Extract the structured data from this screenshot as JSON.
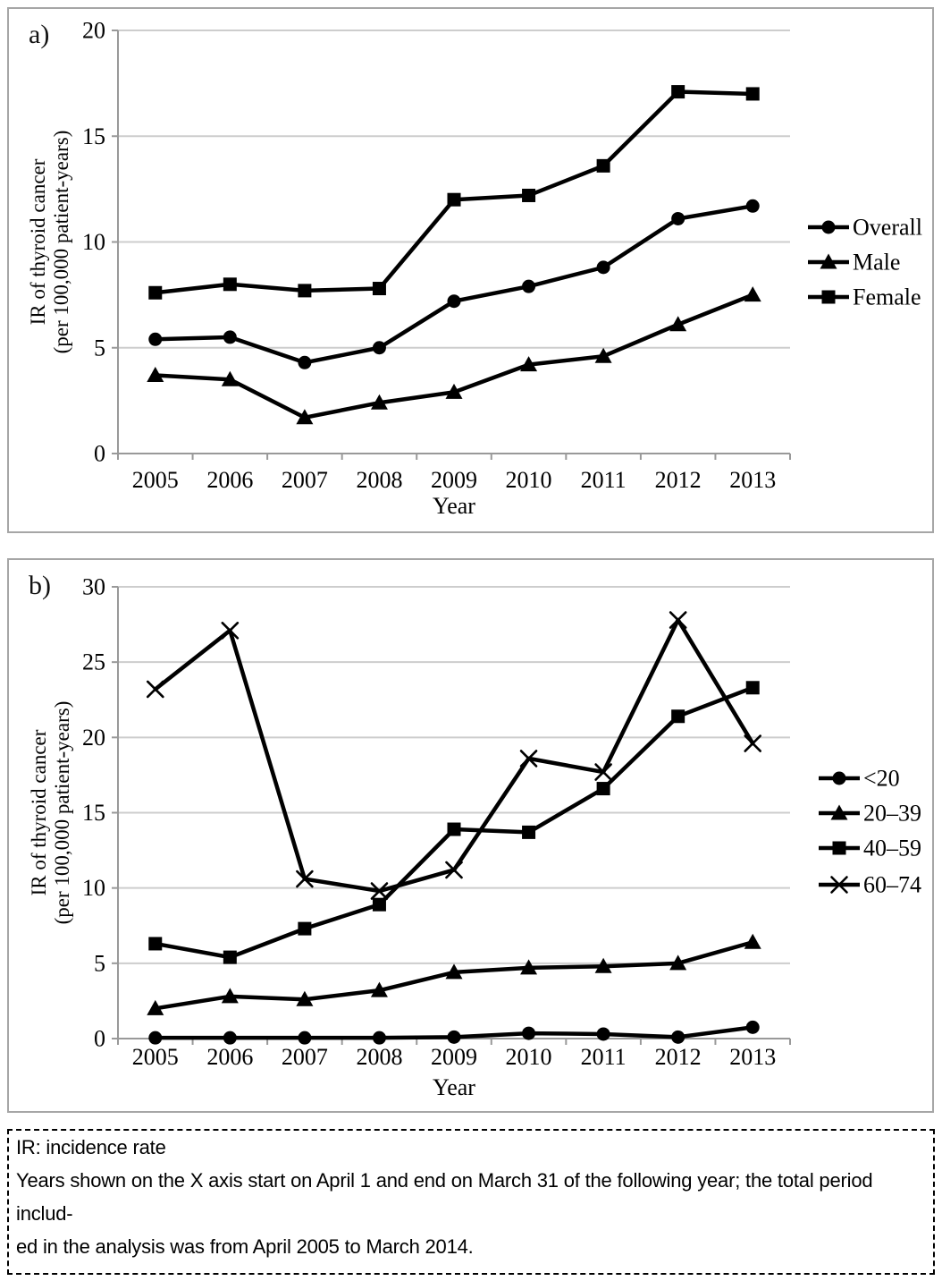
{
  "panels": {
    "a_label": "a)",
    "b_label": "b)"
  },
  "caption": {
    "line1": "IR: incidence rate",
    "line2": "Years shown on the X axis start on April 1 and end on March 31 of the following year; the total period  includ-",
    "line3": "ed in the analysis was from April 2005 to March 2014."
  },
  "chart_data": [
    {
      "id": "a",
      "type": "line",
      "title": "",
      "xlabel": "Year",
      "ylabel": "IR of thyroid cancer (per 100,000 patient-years)",
      "ylabel_line1": "IR of thyroid cancer",
      "ylabel_line2": "(per 100,000 patient-years)",
      "categories": [
        "2005",
        "2006",
        "2007",
        "2008",
        "2009",
        "2010",
        "2011",
        "2012",
        "2013"
      ],
      "ylim": [
        0,
        20
      ],
      "yticks": [
        0,
        5,
        10,
        15,
        20
      ],
      "grid": true,
      "legend_position": "right",
      "line_color": "#000000",
      "series": [
        {
          "name": "Overall",
          "marker": "circle",
          "values": [
            5.4,
            5.5,
            4.3,
            5.0,
            7.2,
            7.9,
            8.8,
            11.1,
            11.7
          ]
        },
        {
          "name": "Male",
          "marker": "triangle",
          "values": [
            3.7,
            3.5,
            1.7,
            2.4,
            2.9,
            4.2,
            4.6,
            6.1,
            7.5
          ]
        },
        {
          "name": "Female",
          "marker": "square",
          "values": [
            7.6,
            8.0,
            7.7,
            7.8,
            12.0,
            12.2,
            13.6,
            17.1,
            17.0
          ]
        }
      ]
    },
    {
      "id": "b",
      "type": "line",
      "title": "",
      "xlabel": "Year",
      "ylabel": "IR of thyroid cancer (per 100,000 patient-years)",
      "ylabel_line1": "IR of thyroid cancer",
      "ylabel_line2": "(per 100,000 patient-years)",
      "categories": [
        "2005",
        "2006",
        "2007",
        "2008",
        "2009",
        "2010",
        "2011",
        "2012",
        "2013"
      ],
      "ylim": [
        0,
        30
      ],
      "yticks": [
        0,
        5,
        10,
        15,
        20,
        25,
        30
      ],
      "grid": true,
      "legend_position": "right",
      "line_color": "#000000",
      "series": [
        {
          "name": "<20",
          "marker": "circle",
          "values": [
            0.05,
            0.05,
            0.05,
            0.05,
            0.1,
            0.35,
            0.3,
            0.1,
            0.75
          ]
        },
        {
          "name": "20–39",
          "marker": "triangle",
          "values": [
            2.0,
            2.8,
            2.6,
            3.2,
            4.4,
            4.7,
            4.8,
            5.0,
            6.4
          ]
        },
        {
          "name": "40–59",
          "marker": "square",
          "values": [
            6.3,
            5.4,
            7.3,
            8.9,
            13.9,
            13.7,
            16.6,
            21.4,
            23.3
          ]
        },
        {
          "name": "60–74",
          "marker": "x",
          "values": [
            23.2,
            27.1,
            10.6,
            9.8,
            11.2,
            18.6,
            17.7,
            27.8,
            19.6
          ]
        }
      ]
    }
  ]
}
